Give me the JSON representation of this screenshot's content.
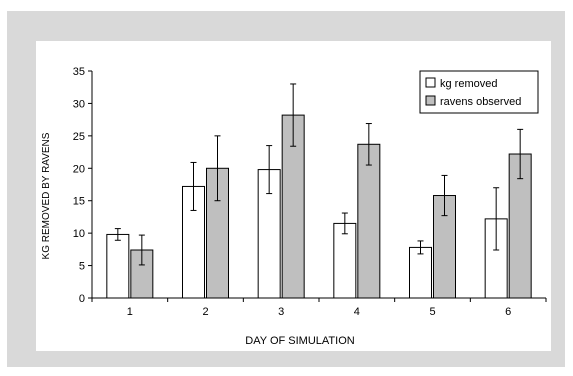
{
  "chart_data": {
    "type": "bar",
    "title": "",
    "xlabel": "DAY OF SIMULATION",
    "ylabel": "KG REMOVED BY RAVENS",
    "ylim": [
      0,
      35
    ],
    "yticks": [
      0,
      5,
      10,
      15,
      20,
      25,
      30,
      35
    ],
    "categories": [
      "1",
      "2",
      "3",
      "4",
      "5",
      "6"
    ],
    "legend_position": "top-right",
    "grid": false,
    "series": [
      {
        "name": "kg removed",
        "color": "#ffffff",
        "values": [
          9.8,
          17.2,
          19.8,
          11.5,
          7.8,
          12.2
        ],
        "error": [
          0.9,
          3.7,
          3.7,
          1.6,
          1.0,
          4.8
        ]
      },
      {
        "name": "ravens observed",
        "color": "#bfbfbf",
        "values": [
          7.4,
          20.0,
          28.2,
          23.7,
          15.8,
          22.2
        ],
        "error": [
          2.3,
          5.0,
          4.8,
          3.2,
          3.1,
          3.8
        ]
      }
    ]
  }
}
